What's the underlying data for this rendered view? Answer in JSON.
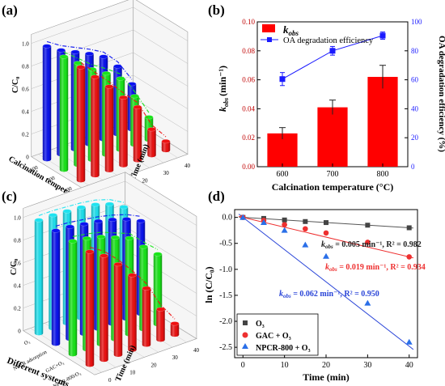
{
  "panels": {
    "a": {
      "label": "(a)"
    },
    "b": {
      "label": "(b)"
    },
    "c": {
      "label": "(c)"
    },
    "d": {
      "label": "(d)"
    }
  },
  "chart_data": [
    {
      "panel": "a",
      "type": "bar",
      "subtype": "3d-cylinder",
      "zlabel": "C/C₀",
      "xlabel": "Calcination temperature (°C)",
      "ylabel": "Time (min)",
      "x_categories": [
        "600",
        "700",
        "800"
      ],
      "y_ticks": [
        "0",
        "10",
        "20",
        "30",
        "40"
      ],
      "z_ticks": [
        "0",
        "0.2",
        "0.4",
        "0.6",
        "0.8",
        "1.0"
      ],
      "time": [
        0,
        5,
        10,
        15,
        20,
        30,
        40
      ],
      "series": [
        {
          "name": "600",
          "color": "#0a12f0",
          "values": [
            1.0,
            0.92,
            0.86,
            0.8,
            0.73,
            0.6,
            0.4
          ]
        },
        {
          "name": "700",
          "color": "#19e619",
          "values": [
            1.0,
            0.9,
            0.8,
            0.72,
            0.63,
            0.43,
            0.2
          ]
        },
        {
          "name": "800",
          "color": "#ee1111",
          "values": [
            1.0,
            0.87,
            0.74,
            0.6,
            0.47,
            0.23,
            0.08
          ]
        }
      ]
    },
    {
      "panel": "b",
      "type": "bar",
      "categories": [
        "600",
        "700",
        "800"
      ],
      "xlabel": "Calcination temperature (°C)",
      "ylabel": "k_obs (min⁻¹)",
      "ylabel2": "OA degradation efficiency (%)",
      "ylim": [
        0,
        0.1
      ],
      "y_ticks": [
        "0.00",
        "0.02",
        "0.04",
        "0.06",
        "0.08",
        "0.10"
      ],
      "y2lim": [
        0,
        100
      ],
      "y2_ticks": [
        "0",
        "20",
        "40",
        "60",
        "80",
        "100"
      ],
      "legend": [
        "k_obs",
        "OA degradation efficiency"
      ],
      "legend_position": "top-left",
      "series": [
        {
          "name": "k_obs",
          "kind": "bar",
          "color": "#ff0000",
          "values": [
            0.023,
            0.041,
            0.062
          ],
          "errors": [
            0.004,
            0.005,
            0.008
          ]
        },
        {
          "name": "OA degradation efficiency",
          "kind": "line",
          "axis": "right",
          "color": "#1a1aff",
          "values": [
            60.5,
            80,
            90.5
          ],
          "errors": [
            4.5,
            3,
            2.5
          ]
        }
      ]
    },
    {
      "panel": "c",
      "type": "bar",
      "subtype": "3d-cylinder",
      "zlabel": "C/C₀",
      "xlabel": "Different systems",
      "ylabel": "Time (min)",
      "x_categories": [
        "O₃",
        "NPCR adsorption",
        "GAC+O₃",
        "NPCR-800/O₃"
      ],
      "y_ticks": [
        "0",
        "10",
        "20",
        "30",
        "40"
      ],
      "z_ticks": [
        "0",
        "0.2",
        "0.4",
        "0.6",
        "0.8",
        "1.0"
      ],
      "time": [
        0,
        5,
        10,
        15,
        20,
        30,
        40
      ],
      "series": [
        {
          "name": "O₃",
          "color": "#1fe3f0",
          "values": [
            1.0,
            1.0,
            0.99,
            0.98,
            0.96,
            0.92,
            0.85
          ]
        },
        {
          "name": "NPCR adsorption",
          "color": "#0a12f0",
          "values": [
            1.0,
            0.99,
            0.97,
            0.95,
            0.92,
            0.88,
            0.82
          ]
        },
        {
          "name": "GAC+O₃",
          "color": "#19e619",
          "values": [
            1.0,
            0.98,
            0.95,
            0.9,
            0.85,
            0.73,
            0.62
          ]
        },
        {
          "name": "NPCR-800/O₃",
          "color": "#ee1111",
          "values": [
            1.0,
            0.92,
            0.8,
            0.66,
            0.5,
            0.27,
            0.1
          ]
        }
      ]
    },
    {
      "panel": "d",
      "type": "scatter",
      "xlabel": "Time (min)",
      "ylabel": "ln (C/C₀)",
      "xlim": [
        -2,
        42
      ],
      "ylim": [
        -2.7,
        0.15
      ],
      "x_ticks": [
        "0",
        "10",
        "20",
        "30",
        "40"
      ],
      "y_ticks": [
        "0.0",
        "-0.5",
        "-1.0",
        "-1.5",
        "-2.0",
        "-2.5"
      ],
      "legend_position": "bottom-left",
      "series": [
        {
          "name": "O₃",
          "marker": "square",
          "color": "#444444",
          "x": [
            0,
            5,
            10,
            15,
            20,
            30,
            40
          ],
          "y": [
            0,
            -0.02,
            -0.05,
            -0.08,
            -0.1,
            -0.15,
            -0.2
          ],
          "fit": {
            "slope": -0.005,
            "intercept": 0
          }
        },
        {
          "name": "GAC + O₃",
          "marker": "circle",
          "color": "#ee3030",
          "x": [
            0,
            5,
            10,
            15,
            20,
            30,
            40
          ],
          "y": [
            0,
            -0.06,
            -0.14,
            -0.22,
            -0.3,
            -0.48,
            -0.76
          ],
          "fit": {
            "slope": -0.019,
            "intercept": 0
          }
        },
        {
          "name": "NPCR-800 + O₃",
          "marker": "triangle",
          "color": "#2a6fe8",
          "x": [
            0,
            5,
            10,
            15,
            20,
            30,
            40
          ],
          "y": [
            0,
            -0.1,
            -0.25,
            -0.53,
            -0.75,
            -1.65,
            -2.4
          ],
          "fit": {
            "slope": -0.062,
            "intercept": 0
          }
        }
      ],
      "annotations": [
        {
          "series": "O₃",
          "text": "k_obs = 0.005 min⁻¹, R² = 0.982"
        },
        {
          "series": "GAC + O₃",
          "text": "k_obs = 0.019 min⁻¹, R² = 0.934"
        },
        {
          "series": "NPCR-800 + O₃",
          "text": "k_obs = 0.062 min⁻¹, R² = 0.950"
        }
      ]
    }
  ],
  "panel_text": {
    "b": {
      "legend_kobs_main": "k",
      "legend_kobs_sub": "obs",
      "legend_oa": "OA degradation efficiency",
      "ylabel_k": "k",
      "ylabel_sub": "obs",
      "ylabel_unit": "(min⁻¹)"
    },
    "d": {
      "ann": [
        {
          "k": "k",
          "sub": "obs",
          "rest": " = 0.005 min⁻¹, R² = 0.982"
        },
        {
          "k": "k",
          "sub": "obs",
          "rest": " = 0.019 min⁻¹, R² = 0.934"
        },
        {
          "k": "k",
          "sub": "obs",
          "rest": " = 0.062 min⁻¹, R² = 0.950"
        }
      ]
    }
  }
}
